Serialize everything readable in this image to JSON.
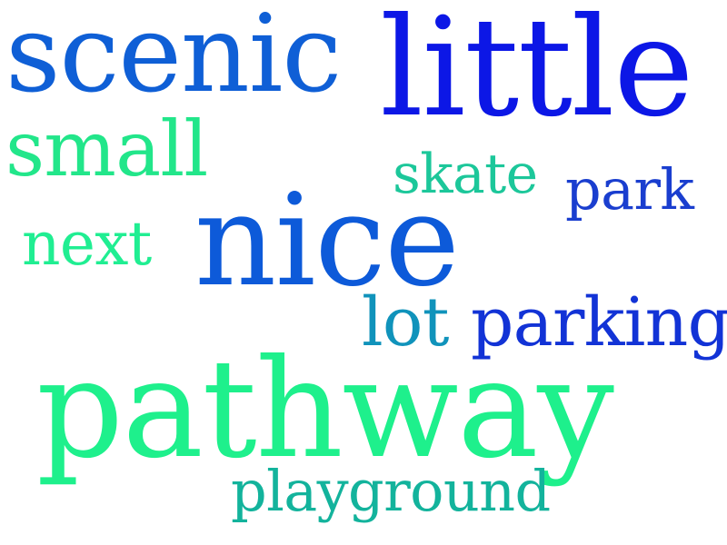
{
  "words": [
    {
      "text": "scenic",
      "color": "#0f5fd6"
    },
    {
      "text": "little",
      "color": "#0c17e6"
    },
    {
      "text": "small",
      "color": "#22e68a"
    },
    {
      "text": "skate",
      "color": "#1cc79a"
    },
    {
      "text": "park",
      "color": "#1a3ecf"
    },
    {
      "text": "nice",
      "color": "#0d5ad9"
    },
    {
      "text": "next",
      "color": "#20ee92"
    },
    {
      "text": "lot",
      "color": "#1093bb"
    },
    {
      "text": "parking",
      "color": "#1233d6"
    },
    {
      "text": "pathway",
      "color": "#1ef08c"
    },
    {
      "text": "playground",
      "color": "#13b39c"
    }
  ]
}
